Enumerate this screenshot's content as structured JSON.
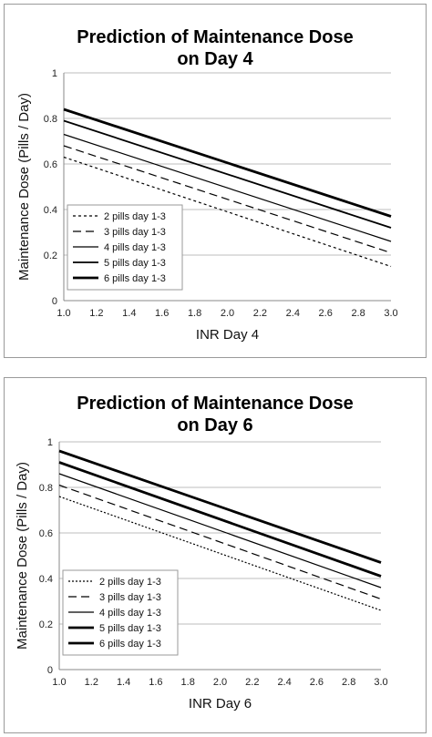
{
  "chart_data": [
    {
      "type": "line",
      "title_line1": "Prediction of Maintenance Dose",
      "title_line2": "on Day 4",
      "xlabel": "INR Day 4",
      "ylabel": "Maintenance Dose (Pills / Day)",
      "xlim": [
        1.0,
        3.0
      ],
      "ylim": [
        0,
        1
      ],
      "x_ticks": [
        "1.0",
        "1.2",
        "1.4",
        "1.6",
        "1.8",
        "2.0",
        "2.2",
        "2.4",
        "2.6",
        "2.8",
        "3.0"
      ],
      "y_ticks": [
        "0",
        "0.2",
        "0.4",
        "0.6",
        "0.8",
        "1"
      ],
      "grid": "horizontal",
      "legend_position": "bottom-left",
      "series": [
        {
          "name": "2 pills day 1-3",
          "style": "short-dash",
          "x": [
            1.0,
            3.0
          ],
          "y": [
            0.63,
            0.15
          ]
        },
        {
          "name": "3 pills day 1-3",
          "style": "long-dash",
          "x": [
            1.0,
            3.0
          ],
          "y": [
            0.68,
            0.21
          ]
        },
        {
          "name": "4 pills day 1-3",
          "style": "thin-solid",
          "x": [
            1.0,
            3.0
          ],
          "y": [
            0.73,
            0.26
          ]
        },
        {
          "name": "5 pills day 1-3",
          "style": "solid",
          "x": [
            1.0,
            3.0
          ],
          "y": [
            0.79,
            0.32
          ]
        },
        {
          "name": "6 pills day 1-3",
          "style": "thick-solid",
          "x": [
            1.0,
            3.0
          ],
          "y": [
            0.84,
            0.37
          ]
        }
      ]
    },
    {
      "type": "line",
      "title_line1": "Prediction of Maintenance Dose",
      "title_line2": "on Day 6",
      "xlabel": "INR Day 6",
      "ylabel": "Maintenance Dose (Pills / Day)",
      "xlim": [
        1.0,
        3.0
      ],
      "ylim": [
        0,
        1
      ],
      "x_ticks": [
        "1.0",
        "1.2",
        "1.4",
        "1.6",
        "1.8",
        "2.0",
        "2.2",
        "2.4",
        "2.6",
        "2.8",
        "3.0"
      ],
      "y_ticks": [
        "0",
        "0.2",
        "0.4",
        "0.6",
        "0.8",
        "1"
      ],
      "grid": "horizontal",
      "legend_position": "bottom-left",
      "series": [
        {
          "name": "2 pills day 1-3",
          "style": "dotted",
          "x": [
            1.0,
            3.0
          ],
          "y": [
            0.76,
            0.26
          ]
        },
        {
          "name": "3 pills day 1-3",
          "style": "long-dash",
          "x": [
            1.0,
            3.0
          ],
          "y": [
            0.81,
            0.31
          ]
        },
        {
          "name": "4 pills day 1-3",
          "style": "thin-solid",
          "x": [
            1.0,
            3.0
          ],
          "y": [
            0.86,
            0.36
          ]
        },
        {
          "name": "5 pills day 1-3",
          "style": "thick-solid",
          "x": [
            1.0,
            3.0
          ],
          "y": [
            0.91,
            0.41
          ]
        },
        {
          "name": "6 pills day 1-3",
          "style": "thick-solid",
          "x": [
            1.0,
            3.0
          ],
          "y": [
            0.96,
            0.47
          ]
        }
      ]
    }
  ]
}
